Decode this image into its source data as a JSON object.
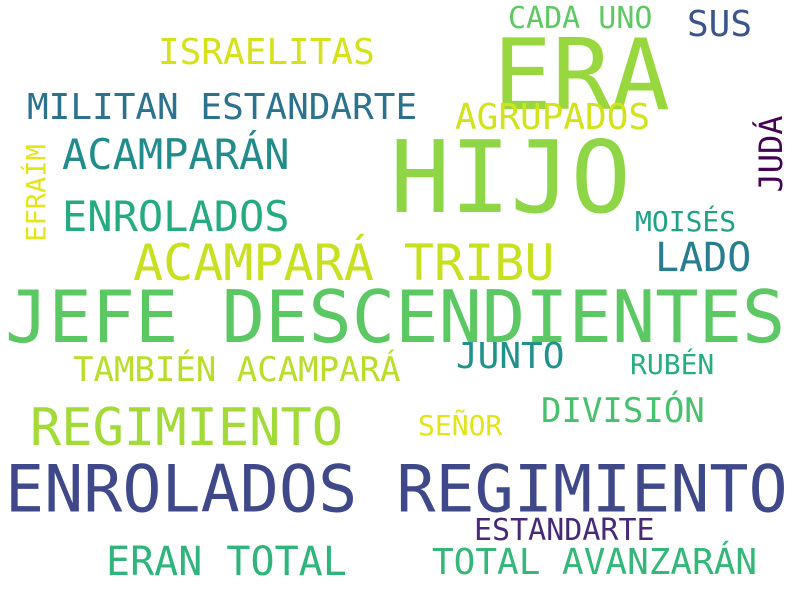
{
  "words": [
    {
      "text": "ERA",
      "color": "#98d83e"
    },
    {
      "text": "HIJO",
      "color": "#8ed645"
    },
    {
      "text": "JEFE DESCENDIENTES",
      "color": "#5cc863"
    },
    {
      "text": "ENROLADOS REGIMIENTO",
      "color": "#3f4889"
    },
    {
      "text": "ACAMPARÁ TRIBU",
      "color": "#c8e020"
    },
    {
      "text": "REGIMIENTO",
      "color": "#a2da37"
    },
    {
      "text": "ACAMPARÁN",
      "color": "#228c8d"
    },
    {
      "text": "ENROLADOS",
      "color": "#25ab82"
    },
    {
      "text": "MILITAN ESTANDARTE",
      "color": "#2c728e"
    },
    {
      "text": "ISRAELITAS",
      "color": "#d5e21a"
    },
    {
      "text": "CADA UNO",
      "color": "#5ec962"
    },
    {
      "text": "SUS",
      "color": "#3a548c"
    },
    {
      "text": "AGRUPADOS",
      "color": "#d2e21b"
    },
    {
      "text": "JUDÁ",
      "color": "#440154"
    },
    {
      "text": "EFRAÍM",
      "color": "#e5e419"
    },
    {
      "text": "MOISÉS",
      "color": "#1fa187"
    },
    {
      "text": "LADO",
      "color": "#287d8e"
    },
    {
      "text": "TAMBIÉN ACAMPARÁ",
      "color": "#b8de29"
    },
    {
      "text": "JUNTO",
      "color": "#21918c"
    },
    {
      "text": "RUBÉN",
      "color": "#27ad81"
    },
    {
      "text": "DIVISIÓN",
      "color": "#48c16e"
    },
    {
      "text": "SEÑOR",
      "color": "#e2e418"
    },
    {
      "text": "ESTANDARTE",
      "color": "#482878"
    },
    {
      "text": "ERAN TOTAL",
      "color": "#2fb47c"
    },
    {
      "text": "TOTAL AVANZARÁN",
      "color": "#35b779"
    }
  ]
}
